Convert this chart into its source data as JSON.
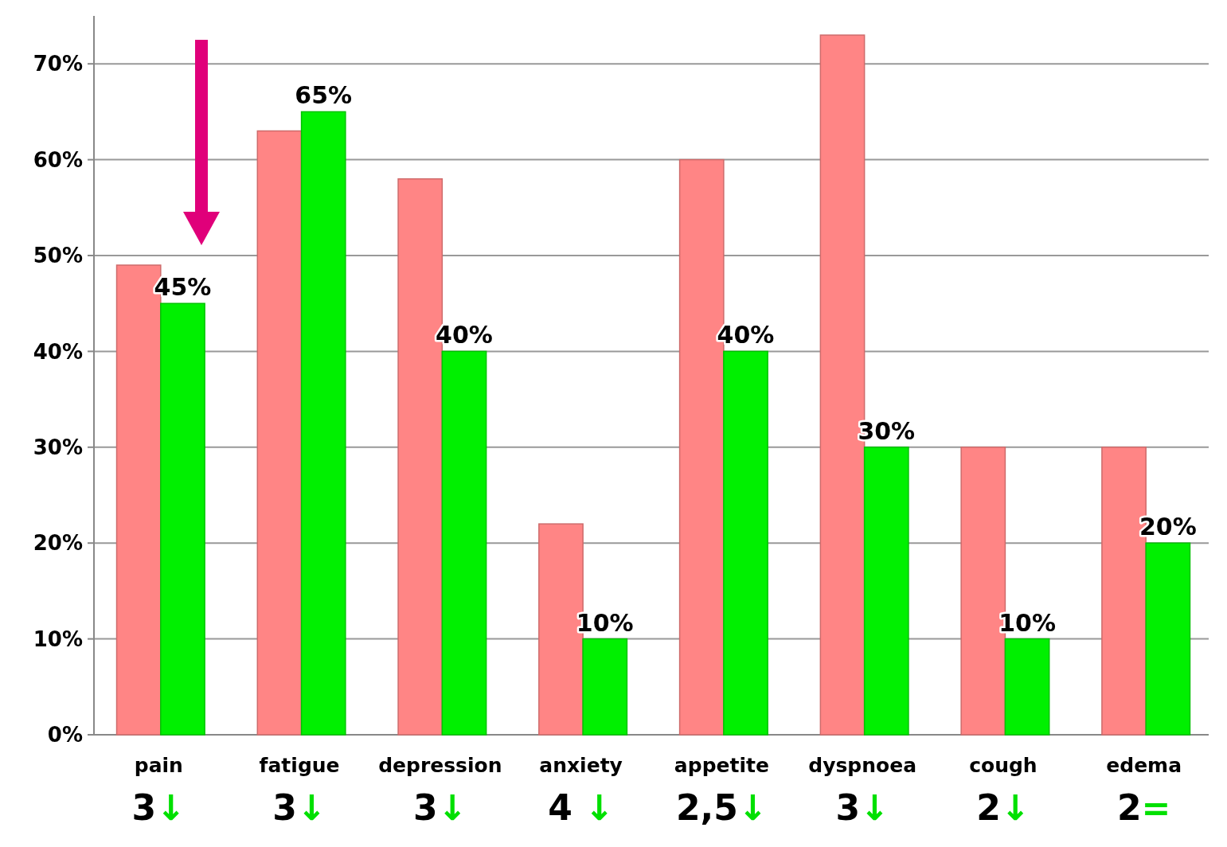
{
  "chart_data": {
    "type": "bar",
    "categories": [
      "pain",
      "fatigue",
      "depression",
      "anxiety",
      "appetite",
      "dyspnoea",
      "cough",
      "edema"
    ],
    "series": [
      {
        "color": "#ff8585",
        "values": [
          49,
          63,
          58,
          22,
          60,
          73,
          30,
          30
        ]
      },
      {
        "color": "#00f000",
        "values": [
          45,
          65,
          40,
          10,
          40,
          30,
          10,
          20
        ],
        "value_labels": [
          "45%",
          "65%",
          "40%",
          "10%",
          "40%",
          "30%",
          "10%",
          "20%"
        ]
      }
    ],
    "ylim": [
      0,
      75
    ],
    "yticks": [
      {
        "value": 0,
        "label": "0%"
      },
      {
        "value": 10,
        "label": "10%"
      },
      {
        "value": 20,
        "label": "20%"
      },
      {
        "value": 30,
        "label": "30%"
      },
      {
        "value": 40,
        "label": "40%"
      },
      {
        "value": 50,
        "label": "50%"
      },
      {
        "value": 60,
        "label": "60%"
      },
      {
        "value": 70,
        "label": "70%"
      }
    ],
    "grid": "y",
    "annotations": [
      "3↓",
      "3↓",
      "3↓",
      "4 ↓",
      "2,5↓",
      "3↓",
      "2↓",
      "2="
    ]
  }
}
